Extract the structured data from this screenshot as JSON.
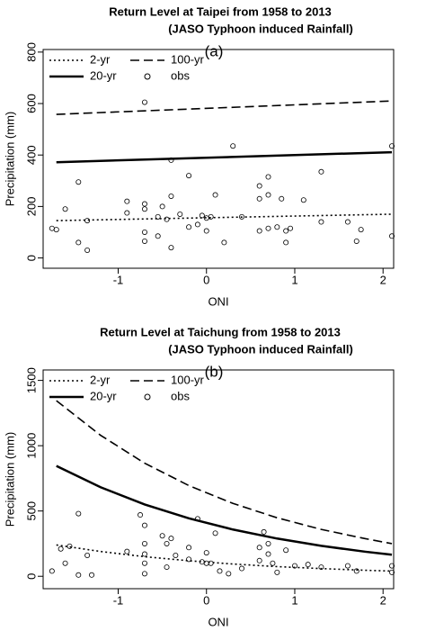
{
  "chart_data": [
    {
      "type": "line",
      "title": "Return Level at Taipei from 1958 to 2013",
      "subtitle": "(JASO Typhoon induced Rainfall)",
      "annotation": "(a)",
      "xlabel": "ONI",
      "ylabel": "Precipitation (mm)",
      "xlim": [
        -1.85,
        2.12
      ],
      "xticks": [
        -1,
        0,
        1,
        2
      ],
      "ylim": [
        -40,
        810
      ],
      "yticks": [
        0,
        200,
        400,
        600,
        800
      ],
      "series": [
        {
          "name": "2-yr",
          "type": "line",
          "style": "dotted",
          "color": "#000000",
          "x": [
            -1.7,
            2.1
          ],
          "values": [
            145,
            170
          ]
        },
        {
          "name": "100-yr",
          "type": "line",
          "style": "dashed",
          "color": "#000000",
          "x": [
            -1.7,
            2.1
          ],
          "values": [
            558,
            610
          ]
        },
        {
          "name": "20-yr",
          "type": "line",
          "style": "solid",
          "color": "#000000",
          "x": [
            -1.7,
            2.1
          ],
          "values": [
            372,
            411
          ]
        },
        {
          "name": "obs",
          "type": "scatter",
          "color": "#000000",
          "x": [
            -1.75,
            -1.7,
            -1.6,
            -1.45,
            -1.45,
            -1.35,
            -1.35,
            -0.9,
            -0.9,
            -0.7,
            -0.7,
            -0.7,
            -0.7,
            -0.7,
            -0.55,
            -0.55,
            -0.5,
            -0.45,
            -0.4,
            -0.4,
            -0.4,
            -0.3,
            -0.2,
            -0.2,
            -0.1,
            -0.05,
            0,
            0,
            0.05,
            0.1,
            0.2,
            0.3,
            0.4,
            0.6,
            0.6,
            0.6,
            0.7,
            0.7,
            0.7,
            0.8,
            0.85,
            0.9,
            0.9,
            0.95,
            1.1,
            1.3,
            1.3,
            1.6,
            1.7,
            1.75,
            2.1,
            2.1
          ],
          "values": [
            115,
            110,
            190,
            295,
            60,
            145,
            30,
            220,
            175,
            605,
            210,
            190,
            100,
            65,
            160,
            85,
            200,
            150,
            380,
            240,
            40,
            170,
            320,
            120,
            130,
            165,
            105,
            155,
            160,
            245,
            60,
            435,
            160,
            280,
            230,
            105,
            315,
            245,
            115,
            120,
            230,
            105,
            60,
            115,
            225,
            335,
            140,
            140,
            65,
            110,
            435,
            85
          ]
        }
      ]
    },
    {
      "type": "line",
      "title": "Return Level at Taichung from 1958 to 2013",
      "subtitle": "(JASO Typhoon induced Rainfall)",
      "annotation": "(b)",
      "xlabel": "ONI",
      "ylabel": "Precipitation (mm)",
      "xlim": [
        -1.85,
        2.12
      ],
      "xticks": [
        -1,
        0,
        1,
        2
      ],
      "ylim": [
        -95,
        1580
      ],
      "yticks": [
        0,
        500,
        1000,
        1500
      ],
      "series": [
        {
          "name": "2-yr",
          "type": "line",
          "style": "dotted",
          "color": "#000000",
          "x": [
            -1.7,
            -1.2,
            -0.7,
            -0.2,
            0.3,
            0.8,
            1.3,
            1.8,
            2.1
          ],
          "values": [
            240,
            190,
            150,
            119,
            94,
            74,
            59,
            46,
            40
          ]
        },
        {
          "name": "100-yr",
          "type": "line",
          "style": "dashed",
          "color": "#000000",
          "x": [
            -1.7,
            -1.2,
            -0.7,
            -0.2,
            0.3,
            0.8,
            1.3,
            1.8,
            2.1
          ],
          "values": [
            1345,
            1080,
            866,
            695,
            558,
            448,
            359,
            288,
            250
          ]
        },
        {
          "name": "20-yr",
          "type": "line",
          "style": "solid",
          "color": "#000000",
          "x": [
            -1.7,
            -1.2,
            -0.7,
            -0.2,
            0.3,
            0.8,
            1.3,
            1.8,
            2.1
          ],
          "values": [
            845,
            682,
            550,
            444,
            358,
            289,
            233,
            188,
            165
          ]
        },
        {
          "name": "obs",
          "type": "scatter",
          "color": "#000000",
          "x": [
            -1.75,
            -1.65,
            -1.6,
            -1.55,
            -1.45,
            -1.45,
            -1.35,
            -1.3,
            -0.9,
            -0.75,
            -0.7,
            -0.7,
            -0.7,
            -0.7,
            -0.7,
            -0.5,
            -0.45,
            -0.45,
            -0.4,
            -0.35,
            -0.2,
            -0.2,
            -0.1,
            -0.05,
            0,
            0,
            0.05,
            0.1,
            0.15,
            0.25,
            0.4,
            0.65,
            0.6,
            0.6,
            0.7,
            0.7,
            0.75,
            0.8,
            0.9,
            1.0,
            1.15,
            1.3,
            1.6,
            1.7,
            2.1,
            2.1
          ],
          "values": [
            40,
            210,
            100,
            230,
            480,
            10,
            160,
            10,
            190,
            470,
            390,
            250,
            170,
            100,
            20,
            310,
            250,
            70,
            290,
            160,
            220,
            130,
            440,
            110,
            180,
            100,
            100,
            330,
            40,
            20,
            60,
            340,
            220,
            120,
            250,
            170,
            100,
            30,
            200,
            80,
            90,
            70,
            80,
            40,
            80,
            30
          ]
        }
      ]
    }
  ]
}
